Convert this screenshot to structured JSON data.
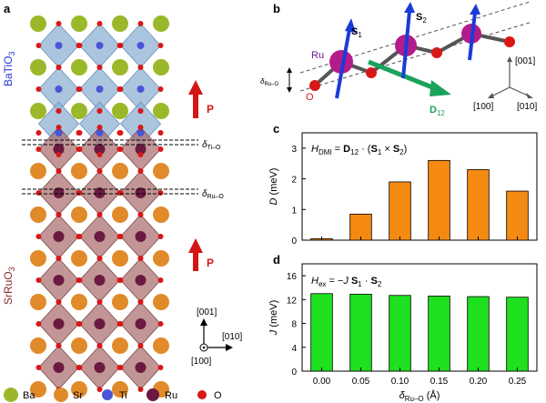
{
  "panels": {
    "a": {
      "label": "a",
      "layer_top": "BaTiO",
      "layer_top_sub": "3",
      "layer_bottom": "SrRuO",
      "layer_bottom_sub": "3",
      "pol_label": "P",
      "delta_ti": "δ",
      "delta_ti_sub": "Ti–O",
      "delta_ru": "δ",
      "delta_ru_sub": "Ru–O",
      "axis_001": "[001]",
      "axis_010": "[010]",
      "axis_100": "[100]"
    },
    "b": {
      "label": "b",
      "ru_label": "Ru",
      "o_label": "O",
      "s1": "S",
      "s1_sub": "1",
      "s2": "S",
      "s2_sub": "2",
      "d12": "D",
      "d12_sub": "12",
      "delta": "δ",
      "delta_sub": "Ru–O",
      "axis_001": "[001]",
      "axis_100": "[100]",
      "axis_010": "[010]"
    },
    "c": {
      "label": "c"
    },
    "d": {
      "label": "d"
    }
  },
  "legend": [
    {
      "name": "Ba",
      "color": "#9ab82a"
    },
    {
      "name": "Sr",
      "color": "#e08a2a"
    },
    {
      "name": "Ti",
      "color": "#4a55d8"
    },
    {
      "name": "Ru",
      "color": "#6a1a40"
    },
    {
      "name": "O",
      "color": "#d81818"
    }
  ],
  "colors": {
    "octa_ti": "#8fb2d4",
    "octa_ru": "#a86a6a",
    "bar_c": "#f58a12",
    "bar_d": "#1fe01f",
    "arrow_p": "#d41515",
    "spin": "#1a3bd8",
    "dvec": "#1aa35a"
  },
  "chart_data": [
    {
      "type": "bar",
      "panel": "c",
      "equation": "H_DMI = D12 · (S1 × S2)",
      "eq_H": "H",
      "eq_H_sub": "DMI",
      "eq_rest": " = ",
      "eq_D": "D",
      "eq_D_sub": "12",
      "eq_tail": " · (",
      "eq_S1": "S",
      "eq_S1_sub": "1",
      "eq_cross": " × ",
      "eq_S2": "S",
      "eq_S2_sub": "2",
      "eq_close": ")",
      "categories": [
        "0.00",
        "0.05",
        "0.10",
        "0.15",
        "0.20",
        "0.25"
      ],
      "values": [
        0.05,
        0.85,
        1.9,
        2.6,
        2.3,
        1.6
      ],
      "ylabel_italic": "D",
      "ylabel_rest": " (meV)",
      "ylim": [
        0,
        3.5
      ],
      "yticks": [
        "0",
        "1",
        "2",
        "3"
      ]
    },
    {
      "type": "bar",
      "panel": "d",
      "equation": "H_ex = -J S1 · S2",
      "eq_H": "H",
      "eq_H_sub": "ex",
      "eq_rest": " = −",
      "eq_J": "J",
      "eq_S1": "S",
      "eq_S1_sub": "1",
      "eq_dot": " · ",
      "eq_S2": "S",
      "eq_S2_sub": "2",
      "categories": [
        "0.00",
        "0.05",
        "0.10",
        "0.15",
        "0.20",
        "0.25"
      ],
      "values": [
        13.0,
        12.9,
        12.7,
        12.6,
        12.5,
        12.4
      ],
      "ylabel_italic": "J",
      "ylabel_rest": " (meV)",
      "xlabel_italic": "δ",
      "xlabel_sub": "Ru–O",
      "xlabel_rest": " (Å)",
      "ylim": [
        0,
        18
      ],
      "yticks": [
        "0",
        "4",
        "8",
        "12",
        "16"
      ]
    }
  ]
}
